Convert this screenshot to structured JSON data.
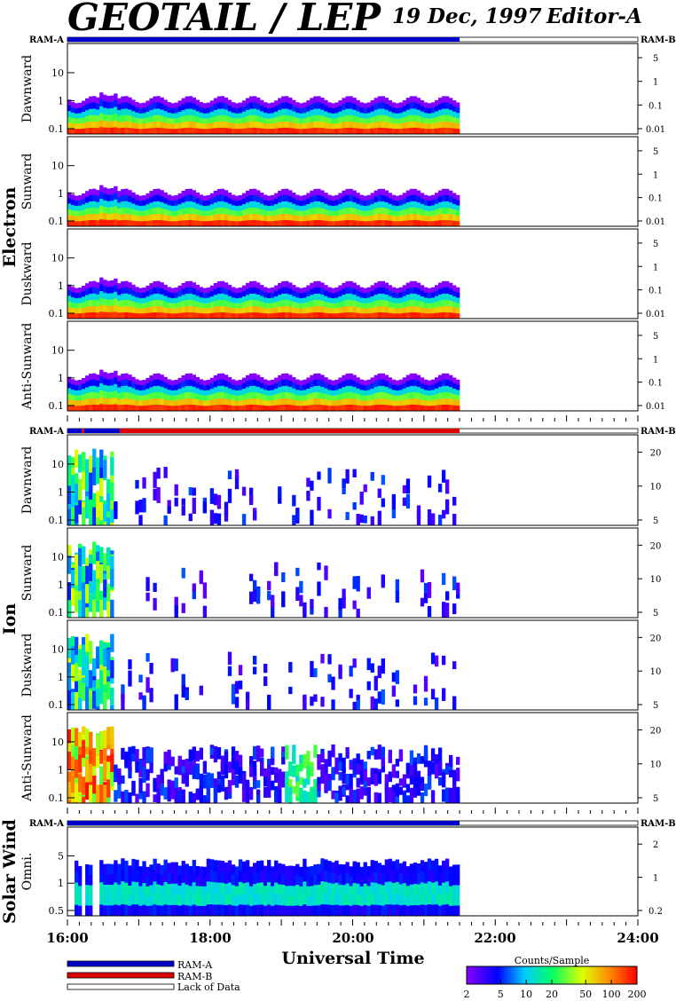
{
  "header": {
    "title": "GEOTAIL / LEP",
    "date": "19 Dec, 1997",
    "editor": "Editor-A"
  },
  "colors": {
    "ram_a": "#0000cc",
    "ram_b": "#dd0000",
    "lack_of_data": "#ffffff"
  },
  "chart_data": {
    "type": "heatmap",
    "xlabel": "Universal Time",
    "x_ticks": [
      "16:00",
      "18:00",
      "20:00",
      "22:00",
      "24:00"
    ],
    "x_range": [
      "16:00",
      "24:00"
    ],
    "data_end": "21:30",
    "colorbar": {
      "label": "Counts/Sample",
      "ticks": [
        "2",
        "5",
        "10",
        "20",
        "50",
        "100",
        "200"
      ],
      "scale": "log",
      "range": [
        2,
        200
      ]
    },
    "mode_legend": [
      {
        "label": "RAM-A",
        "color": "#0000cc"
      },
      {
        "label": "RAM-B",
        "color": "#dd0000"
      },
      {
        "label": "Lack of Data",
        "color": "#ffffff"
      }
    ],
    "groups": [
      {
        "name": "Electron",
        "mode_left": "RAM-A",
        "mode_right": "RAM-B",
        "mode_bar": [
          {
            "start": "16:00",
            "end": "21:30",
            "mode": "RAM-A"
          }
        ],
        "panels": [
          {
            "name": "Dawnward",
            "left_ticks": [
              "0.1",
              "1",
              "10"
            ],
            "right_ticks": [
              "0.01",
              "0.1",
              "1",
              "5"
            ],
            "yscale": "log"
          },
          {
            "name": "Sunward",
            "left_ticks": [
              "0.1",
              "1",
              "10"
            ],
            "right_ticks": [
              "0.01",
              "0.1",
              "1",
              "5"
            ],
            "yscale": "log"
          },
          {
            "name": "Duskward",
            "left_ticks": [
              "0.1",
              "1",
              "10"
            ],
            "right_ticks": [
              "0.01",
              "0.1",
              "1",
              "5"
            ],
            "yscale": "log"
          },
          {
            "name": "Anti-Sunward",
            "left_ticks": [
              "0.1",
              "1",
              "10"
            ],
            "right_ticks": [
              "0.01",
              "0.1",
              "1",
              "5"
            ],
            "yscale": "log"
          }
        ]
      },
      {
        "name": "Ion",
        "mode_left": "RAM-A",
        "mode_right": "RAM-B",
        "mode_bar": [
          {
            "start": "16:00",
            "end": "16:12",
            "mode": "RAM-A"
          },
          {
            "start": "16:12",
            "end": "16:14",
            "mode": "RAM-B"
          },
          {
            "start": "16:14",
            "end": "16:44",
            "mode": "RAM-A"
          },
          {
            "start": "16:44",
            "end": "21:30",
            "mode": "RAM-B"
          }
        ],
        "panels": [
          {
            "name": "Dawnward",
            "left_ticks": [
              "0.1",
              "1",
              "10"
            ],
            "right_ticks": [
              "5",
              "10",
              "20"
            ],
            "yscale": "log"
          },
          {
            "name": "Sunward",
            "left_ticks": [
              "0.1",
              "1",
              "10"
            ],
            "right_ticks": [
              "5",
              "10",
              "20"
            ],
            "yscale": "log"
          },
          {
            "name": "Duskward",
            "left_ticks": [
              "0.1",
              "1",
              "10"
            ],
            "right_ticks": [
              "5",
              "10",
              "20"
            ],
            "yscale": "log"
          },
          {
            "name": "Anti-Sunward",
            "left_ticks": [
              "0.1",
              "1",
              "10"
            ],
            "right_ticks": [
              "5",
              "10",
              "20"
            ],
            "yscale": "log"
          }
        ]
      },
      {
        "name": "Solar Wind",
        "mode_left": "RAM-A",
        "mode_right": "RAM-B",
        "mode_bar": [
          {
            "start": "16:00",
            "end": "21:30",
            "mode": "RAM-A"
          }
        ],
        "panels": [
          {
            "name": "Omni.",
            "left_ticks": [
              "0.5",
              "1",
              "5"
            ],
            "right_ticks": [
              "0.2",
              "1",
              "2"
            ],
            "yscale": "log"
          }
        ]
      }
    ]
  }
}
